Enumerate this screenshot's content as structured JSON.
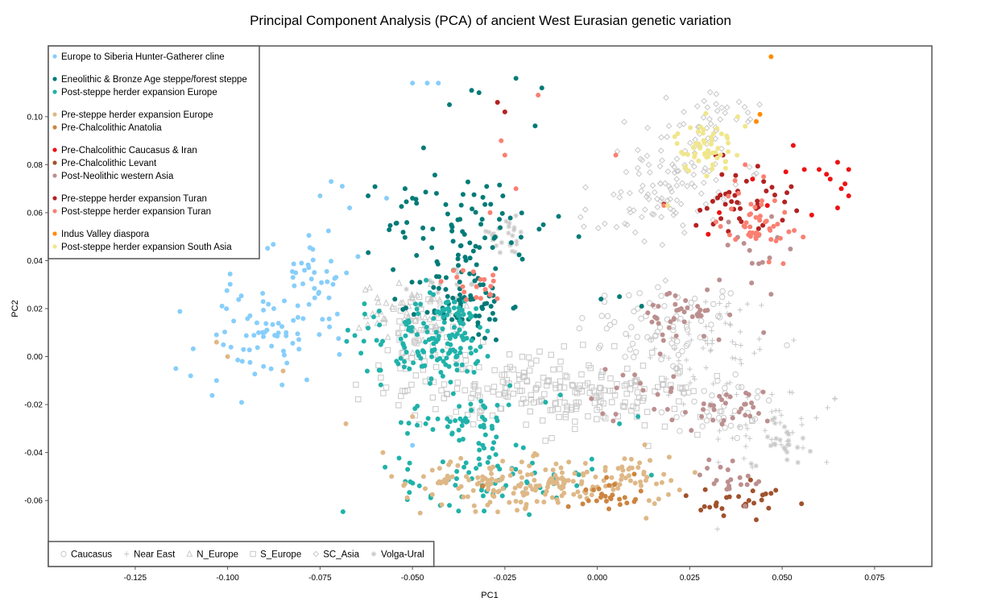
{
  "chart_data": {
    "type": "scatter",
    "title": "Principal Component Analysis (PCA) of ancient West Eurasian genetic variation",
    "xlabel": "PC1",
    "ylabel": "PC2",
    "xlim": [
      -0.1485,
      0.0905
    ],
    "ylim": [
      -0.0875,
      0.1295
    ],
    "xticks": [
      -0.125,
      -0.1,
      -0.075,
      -0.05,
      -0.025,
      0.0,
      0.025,
      0.05,
      0.075
    ],
    "xtick_labels": [
      "-0.125",
      "-0.100",
      "-0.075",
      "-0.050",
      "-0.025",
      "0.000",
      "0.025",
      "0.050",
      "0.075"
    ],
    "yticks": [
      -0.06,
      -0.04,
      -0.02,
      0.0,
      0.02,
      0.04,
      0.06,
      0.08,
      0.1
    ],
    "ytick_labels": [
      "-0.06",
      "-0.04",
      "-0.02",
      "0.00",
      "0.02",
      "0.04",
      "0.06",
      "0.08",
      "0.10"
    ],
    "grid": false,
    "legend_placement": "top-left",
    "reference_legend_placement": "bottom-left",
    "colors": {
      "reference_gray": "#c8c8c8",
      "frame": "#555555"
    },
    "series": [
      {
        "name": "Europe to Siberia Hunter-Gatherer cline",
        "color": "#87cefa",
        "group": 0,
        "clusters": [
          {
            "cx": -0.09,
            "cy": 0.008,
            "sx": 0.009,
            "sy": 0.011,
            "n": 70
          },
          {
            "cx": -0.078,
            "cy": 0.036,
            "sx": 0.006,
            "sy": 0.009,
            "n": 35
          }
        ],
        "points": [
          [
            -0.114,
            -0.005
          ],
          [
            -0.11,
            -0.008
          ],
          [
            -0.103,
            -0.01
          ],
          [
            -0.075,
            0.067
          ],
          [
            -0.072,
            0.073
          ],
          [
            -0.069,
            0.071
          ],
          [
            -0.067,
            0.062
          ],
          [
            -0.057,
            0.066
          ],
          [
            -0.05,
            0.114
          ],
          [
            -0.046,
            0.114
          ],
          [
            -0.043,
            0.114
          ],
          [
            -0.05,
            -0.037
          ]
        ]
      },
      {
        "name": "Eneolithic & Bronze Age steppe/forest steppe",
        "color": "#007b78",
        "group": 1,
        "clusters": [
          {
            "cx": -0.035,
            "cy": 0.055,
            "sx": 0.011,
            "sy": 0.012,
            "n": 80
          },
          {
            "cx": -0.036,
            "cy": 0.022,
            "sx": 0.006,
            "sy": 0.008,
            "n": 70
          }
        ],
        "points": [
          [
            -0.022,
            0.116
          ],
          [
            -0.015,
            0.112
          ],
          [
            -0.062,
            0.067
          ],
          [
            -0.047,
            0.087
          ],
          [
            -0.034,
            0.111
          ],
          [
            -0.032,
            0.11
          ],
          [
            -0.04,
            0.105
          ],
          [
            -0.052,
            0.07
          ],
          [
            -0.05,
            0.066
          ],
          [
            0.001,
            0.024
          ],
          [
            0.006,
            0.025
          ],
          [
            0.012,
            0.021
          ],
          [
            -0.005,
            0.05
          ],
          [
            0.016,
            0.016
          ]
        ]
      },
      {
        "name": "Post-steppe herder expansion Europe",
        "color": "#20b2aa",
        "group": 1,
        "clusters": [
          {
            "cx": -0.041,
            "cy": 0.008,
            "sx": 0.007,
            "sy": 0.009,
            "n": 130
          },
          {
            "cx": -0.035,
            "cy": -0.028,
            "sx": 0.008,
            "sy": 0.008,
            "n": 60
          },
          {
            "cx": -0.027,
            "cy": -0.052,
            "sx": 0.013,
            "sy": 0.006,
            "n": 60
          },
          {
            "cx": -0.055,
            "cy": 0.006,
            "sx": 0.008,
            "sy": 0.01,
            "n": 25
          }
        ],
        "points": [
          [
            -0.063,
            0.022
          ],
          [
            -0.059,
            0.019
          ],
          [
            -0.045,
            -0.058
          ],
          [
            -0.04,
            -0.062
          ],
          [
            -0.014,
            -0.019
          ],
          [
            -0.01,
            -0.016
          ],
          [
            0.006,
            -0.028
          ],
          [
            0.011,
            -0.025
          ],
          [
            -0.02,
            -0.038
          ]
        ]
      },
      {
        "name": "Pre-steppe herder expansion Europe",
        "color": "#deb887",
        "group": 2,
        "clusters": [
          {
            "cx": -0.02,
            "cy": -0.053,
            "sx": 0.016,
            "sy": 0.005,
            "n": 170
          },
          {
            "cx": 0.008,
            "cy": -0.05,
            "sx": 0.008,
            "sy": 0.005,
            "n": 35
          }
        ],
        "points": [
          [
            -0.047,
            -0.05
          ],
          [
            -0.052,
            -0.053
          ],
          [
            -0.058,
            -0.04
          ],
          [
            -0.05,
            -0.025
          ],
          [
            -0.068,
            -0.028
          ],
          [
            -0.1,
            0.0
          ],
          [
            -0.103,
            0.006
          ],
          [
            -0.085,
            -0.006
          ],
          [
            0.014,
            -0.06
          ]
        ]
      },
      {
        "name": "Pre-Chalcolithic Anatolia",
        "color": "#cd853f",
        "group": 2,
        "clusters": [
          {
            "cx": 0.004,
            "cy": -0.057,
            "sx": 0.004,
            "sy": 0.003,
            "n": 25
          }
        ],
        "points": [
          [
            -0.031,
            -0.054
          ],
          [
            0.008,
            -0.061
          ],
          [
            0.01,
            -0.049
          ]
        ]
      },
      {
        "name": "Pre-Chalcolithic Caucasus & Iran",
        "color": "#ee1111",
        "group": 3,
        "clusters": [],
        "points": [
          [
            0.053,
            0.088
          ],
          [
            0.06,
            0.078
          ],
          [
            0.062,
            0.076
          ],
          [
            0.063,
            0.074
          ],
          [
            0.065,
            0.081
          ],
          [
            0.068,
            0.078
          ],
          [
            0.067,
            0.072
          ],
          [
            0.066,
            0.07
          ],
          [
            0.068,
            0.067
          ],
          [
            0.056,
            0.078
          ],
          [
            0.051,
            0.077
          ],
          [
            0.058,
            0.059
          ],
          [
            0.065,
            0.062
          ],
          [
            0.046,
            0.063
          ],
          [
            0.042,
            0.074
          ],
          [
            0.03,
            0.051
          ],
          [
            0.033,
            0.06
          ]
        ]
      },
      {
        "name": "Pre-Chalcolithic Levant",
        "color": "#a0522d",
        "group": 3,
        "clusters": [
          {
            "cx": 0.038,
            "cy": -0.061,
            "sx": 0.006,
            "sy": 0.004,
            "n": 25
          }
        ],
        "points": [
          [
            0.024,
            -0.058
          ],
          [
            0.028,
            -0.064
          ],
          [
            0.043,
            -0.068
          ],
          [
            0.047,
            -0.057
          ]
        ]
      },
      {
        "name": "Post-Neolithic western Asia",
        "color": "#bc8f8f",
        "group": 3,
        "clusters": [
          {
            "cx": 0.024,
            "cy": 0.017,
            "sx": 0.006,
            "sy": 0.006,
            "n": 40
          },
          {
            "cx": 0.035,
            "cy": -0.022,
            "sx": 0.006,
            "sy": 0.004,
            "n": 30
          },
          {
            "cx": 0.037,
            "cy": -0.05,
            "sx": 0.005,
            "sy": 0.005,
            "n": 20
          },
          {
            "cx": 0.042,
            "cy": 0.045,
            "sx": 0.004,
            "sy": 0.008,
            "n": 15
          },
          {
            "cx": 0.01,
            "cy": -0.015,
            "sx": 0.008,
            "sy": 0.006,
            "n": 15
          }
        ],
        "points": [
          [
            0.019,
            -0.022
          ],
          [
            0.005,
            -0.024
          ],
          [
            0.045,
            0.01
          ],
          [
            0.047,
            0.026
          ]
        ]
      },
      {
        "name": "Pre-steppe herder expansion Turan",
        "color": "#b22222",
        "group": 4,
        "clusters": [
          {
            "cx": 0.039,
            "cy": 0.065,
            "sx": 0.007,
            "sy": 0.006,
            "n": 40
          }
        ],
        "points": [
          [
            -0.027,
            0.106
          ],
          [
            -0.025,
            0.102
          ],
          [
            0.032,
            0.084
          ],
          [
            0.034,
            0.084
          ],
          [
            0.038,
            0.069
          ],
          [
            0.045,
            0.073
          ]
        ]
      },
      {
        "name": "Post-steppe herder expansion Turan",
        "color": "#fa8072",
        "group": 4,
        "clusters": [
          {
            "cx": 0.043,
            "cy": 0.056,
            "sx": 0.005,
            "sy": 0.007,
            "n": 45
          },
          {
            "cx": -0.034,
            "cy": 0.03,
            "sx": 0.004,
            "sy": 0.004,
            "n": 20
          }
        ],
        "points": [
          [
            -0.016,
            0.109
          ],
          [
            -0.026,
            0.09
          ],
          [
            -0.022,
            0.07
          ],
          [
            -0.029,
            0.06
          ],
          [
            0.005,
            0.084
          ],
          [
            -0.025,
            0.084
          ],
          [
            0.018,
            0.063
          ],
          [
            0.048,
            0.065
          ],
          [
            0.045,
            0.075
          ],
          [
            0.04,
            0.08
          ]
        ]
      },
      {
        "name": "Indus Valley diaspora",
        "color": "#ff8c00",
        "group": 5,
        "clusters": [],
        "points": [
          [
            0.047,
            0.125
          ],
          [
            0.043,
            0.098
          ],
          [
            0.044,
            0.101
          ]
        ]
      },
      {
        "name": "Post-steppe herder expansion South Asia",
        "color": "#f0e68c",
        "group": 5,
        "clusters": [
          {
            "cx": 0.029,
            "cy": 0.087,
            "sx": 0.004,
            "sy": 0.005,
            "n": 55
          }
        ],
        "points": [
          [
            0.038,
            0.1
          ],
          [
            0.04,
            0.096
          ],
          [
            0.035,
            0.092
          ],
          [
            0.019,
            0.063
          ]
        ]
      }
    ],
    "reference_legend": [
      {
        "name": "Caucasus",
        "marker": "circle"
      },
      {
        "name": "Near East",
        "marker": "plus"
      },
      {
        "name": "N_Europe",
        "marker": "triangle"
      },
      {
        "name": "S_Europe",
        "marker": "square"
      },
      {
        "name": "SC_Asia",
        "marker": "diamond"
      },
      {
        "name": "Volga-Ural",
        "marker": "star"
      }
    ],
    "reference_clusters": [
      {
        "marker": "circle",
        "cx": 0.018,
        "cy": 0.012,
        "sx": 0.012,
        "sy": 0.01,
        "n": 70
      },
      {
        "marker": "circle",
        "cx": 0.032,
        "cy": -0.02,
        "sx": 0.008,
        "sy": 0.008,
        "n": 40
      },
      {
        "marker": "plus",
        "cx": 0.03,
        "cy": 0.005,
        "sx": 0.01,
        "sy": 0.012,
        "n": 60
      },
      {
        "marker": "plus",
        "cx": 0.048,
        "cy": -0.03,
        "sx": 0.01,
        "sy": 0.01,
        "n": 40
      },
      {
        "marker": "square",
        "cx": -0.02,
        "cy": -0.012,
        "sx": 0.018,
        "sy": 0.007,
        "n": 160
      },
      {
        "marker": "square",
        "cx": 0.0,
        "cy": -0.02,
        "sx": 0.015,
        "sy": 0.006,
        "n": 80
      },
      {
        "marker": "square",
        "cx": -0.045,
        "cy": 0.008,
        "sx": 0.008,
        "sy": 0.008,
        "n": 50
      },
      {
        "marker": "triangle",
        "cx": -0.05,
        "cy": 0.018,
        "sx": 0.007,
        "sy": 0.006,
        "n": 60
      },
      {
        "marker": "diamond",
        "cx": 0.022,
        "cy": 0.078,
        "sx": 0.007,
        "sy": 0.012,
        "n": 90
      },
      {
        "marker": "diamond",
        "cx": 0.01,
        "cy": 0.06,
        "sx": 0.007,
        "sy": 0.007,
        "n": 30
      },
      {
        "marker": "diamond",
        "cx": 0.033,
        "cy": 0.1,
        "sx": 0.006,
        "sy": 0.007,
        "n": 25
      },
      {
        "marker": "star",
        "cx": -0.025,
        "cy": 0.05,
        "sx": 0.004,
        "sy": 0.004,
        "n": 25
      },
      {
        "marker": "star",
        "cx": 0.05,
        "cy": -0.035,
        "sx": 0.004,
        "sy": 0.005,
        "n": 25
      },
      {
        "marker": "star",
        "cx": -0.04,
        "cy": 0.03,
        "sx": 0.005,
        "sy": 0.004,
        "n": 15
      }
    ]
  }
}
